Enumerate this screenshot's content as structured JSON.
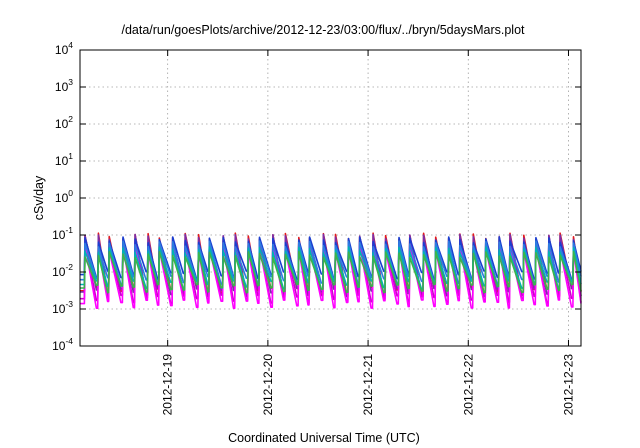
{
  "chart_data": {
    "type": "line",
    "title": "/data/run/goesPlots/archive/2012-12-23/03:00/flux/../bryn/5daysMars.plot",
    "xlabel": "Coordinated Universal Time (UTC)",
    "ylabel": "cSv/day",
    "yscale": "log",
    "ylim": [
      0.0001,
      10000
    ],
    "y_ticks": [
      {
        "base": "10",
        "exp": "-4"
      },
      {
        "base": "10",
        "exp": "-3"
      },
      {
        "base": "10",
        "exp": "-2"
      },
      {
        "base": "10",
        "exp": "-1"
      },
      {
        "base": "10",
        "exp": "0"
      },
      {
        "base": "10",
        "exp": "1"
      },
      {
        "base": "10",
        "exp": "2"
      },
      {
        "base": "10",
        "exp": "3"
      },
      {
        "base": "10",
        "exp": "4"
      }
    ],
    "xlim": [
      "2012-12-18 03:00",
      "2012-12-23 03:00"
    ],
    "x_ticks": [
      {
        "label": "2012-12-19",
        "value": "2012-12-19 00:00"
      },
      {
        "label": "2012-12-20",
        "value": "2012-12-20 00:00"
      },
      {
        "label": "2012-12-21",
        "value": "2012-12-21 00:00"
      },
      {
        "label": "2012-12-22",
        "value": "2012-12-22 00:00"
      },
      {
        "label": "2012-12-23",
        "value": "2012-12-23 00:00"
      }
    ],
    "grid": true,
    "legend": "none",
    "pattern": {
      "peak_cycle_hours": [
        0,
        3.2,
        2.6,
        3.3,
        2.9,
        3.1,
        2.7,
        3.2,
        3.0
      ],
      "series": [
        {
          "color": "#e41a1c",
          "peak": 0.095,
          "trough": 0.0031
        },
        {
          "color": "#7b2fa8",
          "peak": 0.088,
          "trough": 0.0029
        },
        {
          "color": "#cc00cc",
          "peak": 0.06,
          "trough": 0.0019
        },
        {
          "color": "#ff00ff",
          "peak": 0.045,
          "trough": 0.0014
        },
        {
          "color": "#1a3fd0",
          "peak": 0.075,
          "trough": 0.0085
        },
        {
          "color": "#2d7de0",
          "peak": 0.058,
          "trough": 0.0062
        },
        {
          "color": "#00b3b3",
          "peak": 0.04,
          "trough": 0.0046
        },
        {
          "color": "#3cb44b",
          "peak": 0.03,
          "trough": 0.0037
        }
      ]
    }
  }
}
